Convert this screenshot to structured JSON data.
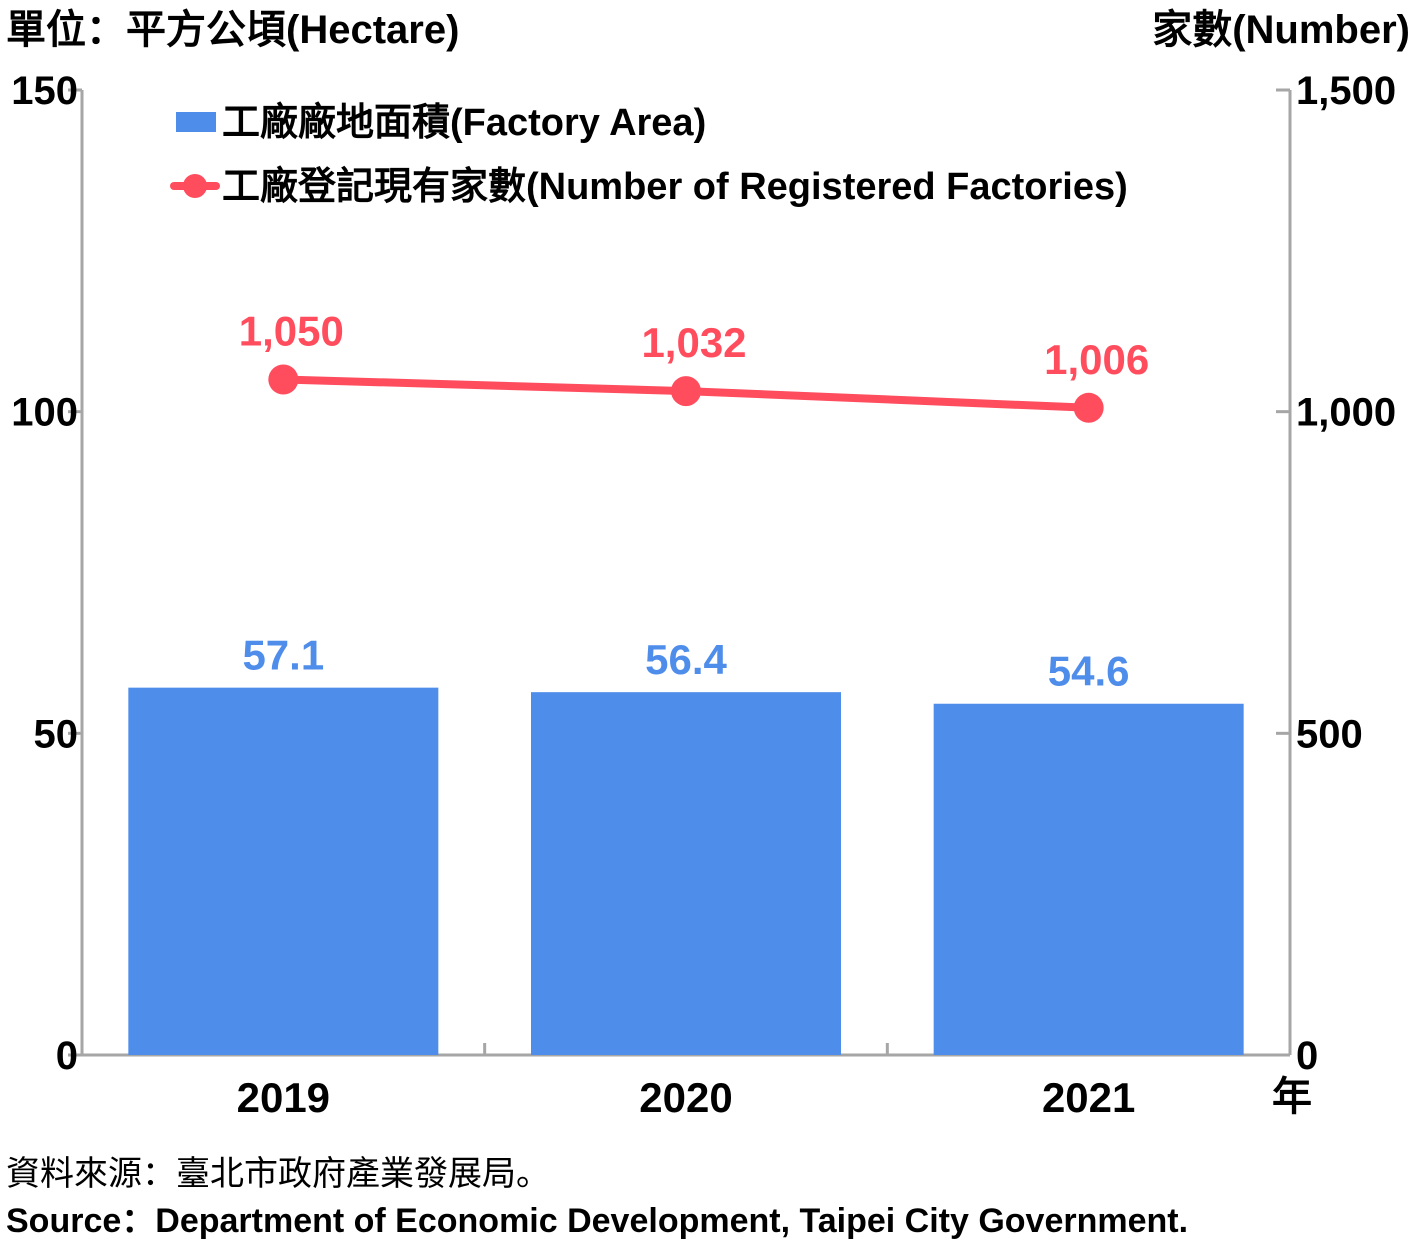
{
  "chart_data": {
    "type": "bar",
    "left_unit": "單位：平方公頃(Hectare)",
    "right_unit": "家數(Number)",
    "categories": [
      "2019",
      "2020",
      "2021"
    ],
    "x_unit": "年",
    "ylim_left": [
      0,
      150
    ],
    "ylim_right": [
      0,
      1500
    ],
    "left_ticks": [
      "0",
      "50",
      "100",
      "150"
    ],
    "right_ticks": [
      "0",
      "500",
      "1,000",
      "1,500"
    ],
    "grid": false,
    "legend_position": "top-left",
    "series": [
      {
        "name": "工廠廠地面積(Factory Area)",
        "type": "bar",
        "axis": "left",
        "color": "#4F8DEB",
        "values": [
          57.1,
          56.4,
          54.6
        ],
        "labels": [
          "57.1",
          "56.4",
          "54.6"
        ]
      },
      {
        "name": "工廠登記現有家數(Number of Registered Factories)",
        "type": "line",
        "axis": "right",
        "color": "#FF4D5E",
        "values": [
          1050,
          1032,
          1006
        ],
        "labels": [
          "1,050",
          "1,032",
          "1,006"
        ]
      }
    ]
  },
  "source": {
    "zh": "資料來源：臺北市政府產業發展局。",
    "en": "Source：Department of Economic Development, Taipei City Government."
  }
}
